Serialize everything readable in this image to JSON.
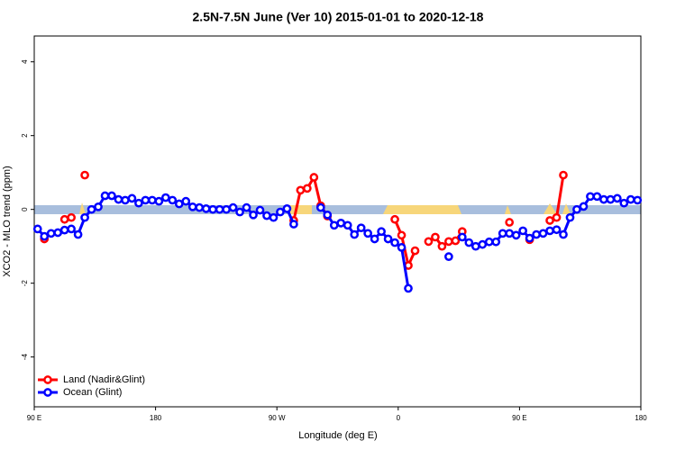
{
  "chart_data": {
    "type": "line",
    "title": "2.5N-7.5N June (Ver 10)   2015-01-01 to 2020-12-18",
    "x_label": "Longitude (deg E)",
    "y_label": "XCO2 - MLO trend (ppm)",
    "x": [
      92.5,
      97.5,
      102.5,
      107.5,
      112.5,
      117.5,
      122.5,
      127.5,
      132.5,
      137.5,
      142.5,
      147.5,
      152.5,
      157.5,
      162.5,
      167.5,
      172.5,
      177.5,
      182.5,
      187.5,
      192.5,
      197.5,
      202.5,
      207.5,
      212.5,
      217.5,
      222.5,
      227.5,
      232.5,
      237.5,
      242.5,
      247.5,
      252.5,
      257.5,
      262.5,
      267.5,
      272.5,
      277.5,
      282.5,
      287.5,
      292.5,
      297.5,
      302.5,
      307.5,
      312.5,
      317.5,
      322.5,
      327.5,
      332.5,
      337.5,
      342.5,
      347.5,
      352.5,
      357.5,
      362.5,
      367.5,
      372.5,
      377.5,
      382.5,
      387.5,
      392.5,
      397.5,
      402.5,
      407.5,
      412.5,
      417.5,
      422.5,
      427.5,
      432.5,
      437.5,
      442.5,
      447.5,
      452.5,
      457.5,
      462.5,
      467.5,
      472.5,
      477.5,
      482.5,
      487.5,
      492.5,
      497.5,
      502.5,
      507.5,
      512.5,
      517.5,
      522.5,
      527.5,
      532.5,
      537.5
    ],
    "series": [
      {
        "name": "Land (Nadir&Glint)",
        "color": "#ff0000",
        "values": [
          null,
          -0.8,
          null,
          null,
          -0.27,
          -0.22,
          null,
          0.93,
          null,
          null,
          null,
          null,
          null,
          null,
          null,
          null,
          null,
          null,
          null,
          null,
          null,
          null,
          null,
          null,
          null,
          null,
          null,
          null,
          null,
          null,
          null,
          null,
          null,
          null,
          null,
          null,
          null,
          null,
          -0.3,
          0.52,
          0.57,
          0.87,
          0.1,
          -0.18,
          null,
          null,
          null,
          null,
          null,
          null,
          null,
          null,
          null,
          -0.27,
          -0.7,
          -1.52,
          -1.12,
          null,
          -0.87,
          -0.75,
          -1.0,
          -0.87,
          -0.85,
          -0.6,
          null,
          null,
          null,
          null,
          null,
          null,
          -0.35,
          null,
          null,
          -0.82,
          null,
          null,
          -0.3,
          -0.22,
          0.93,
          null,
          null,
          null,
          null,
          null,
          null,
          null,
          null,
          null,
          null,
          null
        ]
      },
      {
        "name": "Ocean (Glint)",
        "color": "#0000ff",
        "values": [
          -0.53,
          -0.73,
          -0.65,
          -0.63,
          -0.56,
          -0.53,
          -0.68,
          -0.22,
          0.0,
          0.07,
          0.37,
          0.37,
          0.27,
          0.25,
          0.3,
          0.17,
          0.25,
          0.25,
          0.22,
          0.32,
          0.25,
          0.15,
          0.22,
          0.07,
          0.05,
          0.02,
          0,
          0,
          0,
          0.05,
          -0.07,
          0.05,
          -0.15,
          -0.02,
          -0.17,
          -0.22,
          -0.07,
          0.02,
          -0.4,
          null,
          null,
          null,
          0.05,
          -0.15,
          -0.43,
          -0.37,
          -0.43,
          -0.68,
          -0.5,
          -0.65,
          -0.8,
          -0.6,
          -0.8,
          -0.9,
          -1.03,
          -2.14,
          null,
          null,
          null,
          null,
          null,
          -1.28,
          null,
          -0.75,
          -0.9,
          -1.0,
          -0.95,
          -0.88,
          -0.88,
          -0.65,
          -0.65,
          -0.7,
          -0.58,
          -0.78,
          -0.68,
          -0.65,
          -0.58,
          -0.55,
          -0.68,
          -0.22,
          0.0,
          0.08,
          0.35,
          0.35,
          0.27,
          0.27,
          0.3,
          0.17,
          0.27,
          0.25
        ]
      }
    ],
    "xlim": [
      90,
      540
    ],
    "xticks": [
      {
        "value": 90,
        "label": "90 E"
      },
      180,
      {
        "value": 270,
        "label": "90 W"
      },
      {
        "value": 360,
        "label": "0"
      },
      {
        "value": 450,
        "label": "90 E"
      },
      {
        "value": 540,
        "label": "180"
      }
    ],
    "ylim": [
      -5.35,
      4.7
    ],
    "yticks": [
      -4,
      -2,
      0,
      2,
      4
    ],
    "legend": "bottom-left"
  }
}
